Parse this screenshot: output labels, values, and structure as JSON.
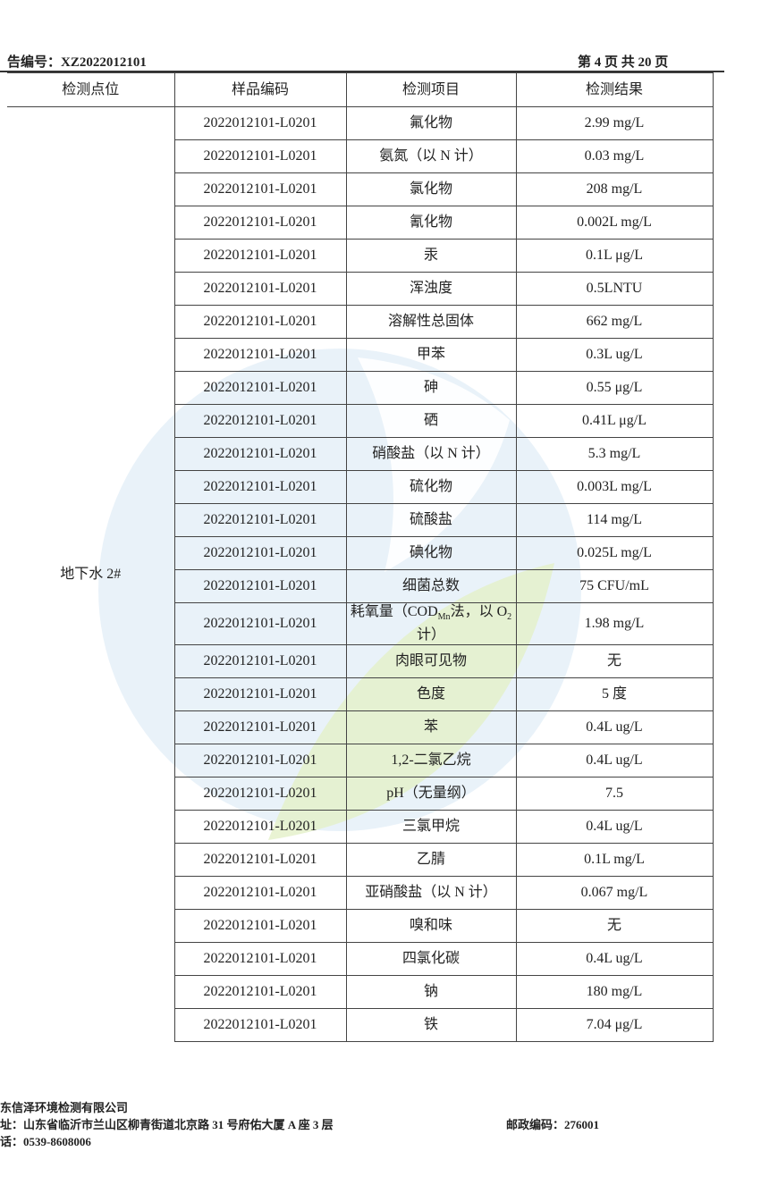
{
  "header": {
    "report_no": "告编号：XZ2022012101",
    "page": "第 4 页 共 20 页"
  },
  "table": {
    "headers": [
      "检测点位",
      "样品编码",
      "检测项目",
      "检测结果"
    ],
    "location": "地下水 2#",
    "rows": [
      [
        "2022012101-L0201",
        "氟化物",
        "2.99 mg/L"
      ],
      [
        "2022012101-L0201",
        "氨氮（以 N 计）",
        "0.03 mg/L"
      ],
      [
        "2022012101-L0201",
        "氯化物",
        "208 mg/L"
      ],
      [
        "2022012101-L0201",
        "氰化物",
        "0.002L mg/L"
      ],
      [
        "2022012101-L0201",
        "汞",
        "0.1L μg/L"
      ],
      [
        "2022012101-L0201",
        "浑浊度",
        "0.5LNTU"
      ],
      [
        "2022012101-L0201",
        "溶解性总固体",
        "662 mg/L"
      ],
      [
        "2022012101-L0201",
        "甲苯",
        "0.3L ug/L"
      ],
      [
        "2022012101-L0201",
        "砷",
        "0.55 μg/L"
      ],
      [
        "2022012101-L0201",
        "硒",
        "0.41L μg/L"
      ],
      [
        "2022012101-L0201",
        "硝酸盐（以 N 计）",
        "5.3 mg/L"
      ],
      [
        "2022012101-L0201",
        "硫化物",
        "0.003L mg/L"
      ],
      [
        "2022012101-L0201",
        "硫酸盐",
        "114 mg/L"
      ],
      [
        "2022012101-L0201",
        "碘化物",
        "0.025L mg/L"
      ],
      [
        "2022012101-L0201",
        "细菌总数",
        "75 CFU/mL"
      ],
      [
        "2022012101-L0201",
        [
          "耗氧量（COD",
          "Mn",
          "法，以 O",
          "2",
          " 计）"
        ],
        "1.98 mg/L"
      ],
      [
        "2022012101-L0201",
        "肉眼可见物",
        "无"
      ],
      [
        "2022012101-L0201",
        "色度",
        "5 度"
      ],
      [
        "2022012101-L0201",
        "苯",
        "0.4L ug/L"
      ],
      [
        "2022012101-L0201",
        "1,2-二氯乙烷",
        "0.4L ug/L"
      ],
      [
        "2022012101-L0201",
        "pH（无量纲）",
        "7.5"
      ],
      [
        "2022012101-L0201",
        "三氯甲烷",
        "0.4L ug/L"
      ],
      [
        "2022012101-L0201",
        "乙腈",
        "0.1L mg/L"
      ],
      [
        "2022012101-L0201",
        "亚硝酸盐（以 N 计）",
        "0.067 mg/L"
      ],
      [
        "2022012101-L0201",
        "嗅和味",
        "无"
      ],
      [
        "2022012101-L0201",
        "四氯化碳",
        "0.4L ug/L"
      ],
      [
        "2022012101-L0201",
        "钠",
        "180 mg/L"
      ],
      [
        "2022012101-L0201",
        "铁",
        "7.04 μg/L"
      ]
    ]
  },
  "footer": {
    "company": "东信泽环境检测有限公司",
    "address": "址：山东省临沂市兰山区柳青街道北京路 31 号府佑大厦 A 座 3 层",
    "postcode": "邮政编码：276001",
    "phone": "话：0539-8608006"
  }
}
